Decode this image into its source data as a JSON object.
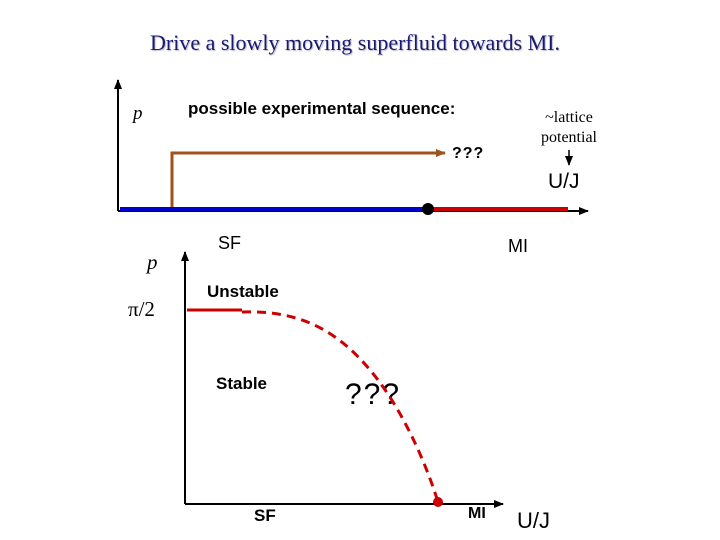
{
  "title": "Drive a slowly moving superfluid towards MI.",
  "top_panel": {
    "y_label": "p",
    "sequence_label": "possible experimental sequence:",
    "lattice_label": "~lattice potential",
    "path_label": "???",
    "x_label": "U/J",
    "sf_label": "SF",
    "mi_label": "MI"
  },
  "bottom_panel": {
    "y_label": "p",
    "y_tick": "π/2",
    "unstable_label": "Unstable",
    "stable_label": "Stable",
    "unknown_label": "???",
    "x_sf": "SF",
    "x_mi": "MI",
    "x_label": "U/J"
  },
  "colors": {
    "title": "#1a1a6e",
    "sf_line": "#0000cc",
    "mi_line": "#cc0000",
    "path": "#a0521e",
    "boundary": "#cc0000",
    "axes": "#000000"
  }
}
